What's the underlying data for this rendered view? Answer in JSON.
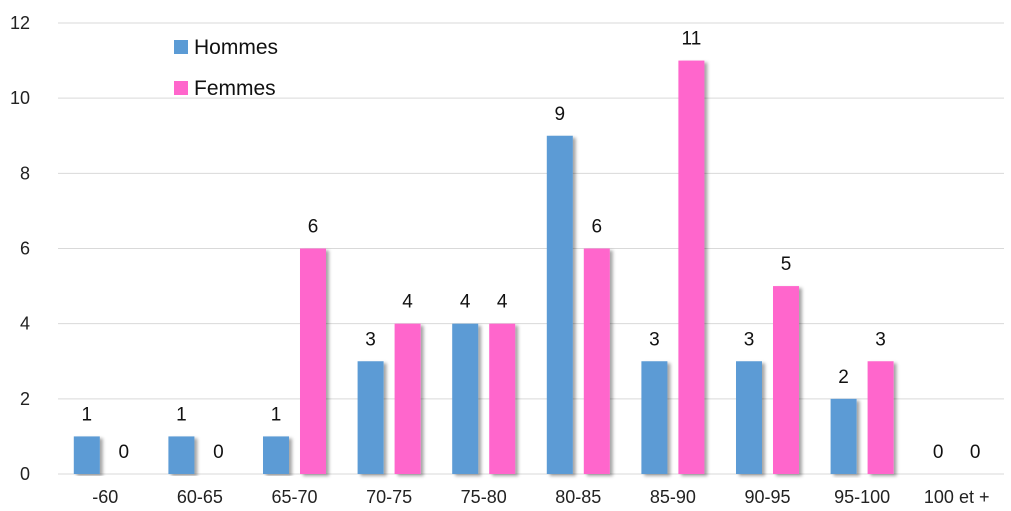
{
  "chart_data": {
    "type": "bar",
    "categories": [
      "-60",
      "60-65",
      "65-70",
      "70-75",
      "75-80",
      "80-85",
      "85-90",
      "90-95",
      "95-100",
      "100 et +"
    ],
    "series": [
      {
        "name": "Hommes",
        "color": "#5b9bd5",
        "values": [
          1,
          1,
          1,
          3,
          4,
          9,
          3,
          3,
          2,
          0
        ]
      },
      {
        "name": "Femmes",
        "color": "#ff66cc",
        "values": [
          0,
          0,
          6,
          4,
          4,
          6,
          11,
          5,
          3,
          0
        ]
      }
    ],
    "ylim": [
      0,
      12
    ],
    "yticks": [
      0,
      2,
      4,
      6,
      8,
      10,
      12
    ],
    "grid": true,
    "legend_position": "top-left",
    "data_labels": true
  }
}
